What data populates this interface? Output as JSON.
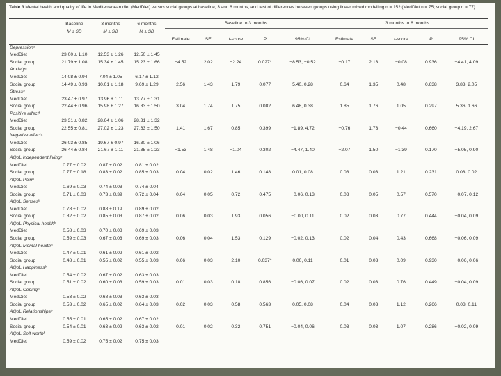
{
  "caption": {
    "label": "Table 3",
    "text": "Mental health and quality of life in Mediterranean diet (MedDiet) versus social groups at baseline, 3 and 6 months, and test of differences between groups using linear mixed modelling n = 152 (MedDiet n = 75; social group n = 77)"
  },
  "header": {
    "baseline": "Baseline",
    "m3": "3 months",
    "m6": "6 months",
    "msd": "M ± SD",
    "group_b3": "Baseline to 3 months",
    "group_36": "3 months to 6 months",
    "cols": [
      "Estimate",
      "SE",
      "t-score",
      "P",
      "95% CI",
      "Estimate",
      "SE",
      "t-score",
      "P",
      "95% CI"
    ]
  },
  "rows": [
    {
      "type": "section",
      "label": "Depressionᵃ"
    },
    {
      "type": "data",
      "label": "MedDiet",
      "c": [
        "23.00 ± 1.10",
        "12.53 ± 1.26",
        "12.50 ± 1.45",
        "",
        "",
        "",
        "",
        "",
        "",
        "",
        "",
        "",
        ""
      ]
    },
    {
      "type": "data",
      "label": "Social group",
      "c": [
        "21.79 ± 1.08",
        "15.34 ± 1.45",
        "15.23 ± 1.66",
        "−4.52",
        "2.02",
        "−2.24",
        "0.027*",
        "−8.53, −0.52",
        "−0.17",
        "2.13",
        "−0.08",
        "0.936",
        "−4.41, 4.09"
      ]
    },
    {
      "type": "section",
      "label": "Anxietyᵃ"
    },
    {
      "type": "data",
      "label": "MedDiet",
      "c": [
        "14.08 ± 0.94",
        "7.04 ± 1.05",
        "6.17 ± 1.12",
        "",
        "",
        "",
        "",
        "",
        "",
        "",
        "",
        "",
        ""
      ]
    },
    {
      "type": "data",
      "label": "Social group",
      "c": [
        "14.49 ± 0.93",
        "10.01 ± 1.18",
        "9.69 ± 1.29",
        "2.56",
        "1.43",
        "1.79",
        "0.077",
        "5.40, 0.28",
        "0.64",
        "1.35",
        "0.48",
        "0.638",
        "3.83, 2.05"
      ]
    },
    {
      "type": "section",
      "label": "Stressᵃ"
    },
    {
      "type": "data",
      "label": "MedDiet",
      "c": [
        "23.47 ± 0.97",
        "13.96 ± 1.11",
        "13.77 ± 1.31",
        "",
        "",
        "",
        "",
        "",
        "",
        "",
        "",
        "",
        ""
      ]
    },
    {
      "type": "data",
      "label": "Social group",
      "c": [
        "22.44 ± 0.96",
        "15.98 ± 1.27",
        "16.33 ± 1.50",
        "3.04",
        "1.74",
        "1.75",
        "0.082",
        "6.48, 0.38",
        "1.85",
        "1.76",
        "1.05",
        "0.297",
        "5.36, 1.66"
      ]
    },
    {
      "type": "section",
      "label": "Positive affectᵇ"
    },
    {
      "type": "data",
      "label": "MedDiet",
      "c": [
        "23.31 ± 0.82",
        "28.64 ± 1.06",
        "28.31 ± 1.32",
        "",
        "",
        "",
        "",
        "",
        "",
        "",
        "",
        "",
        ""
      ]
    },
    {
      "type": "data",
      "label": "Social group",
      "c": [
        "22.55 ± 0.81",
        "27.02 ± 1.23",
        "27.63 ± 1.50",
        "1.41",
        "1.67",
        "0.85",
        "0.399",
        "−1.89, 4.72",
        "−0.76",
        "1.73",
        "−0.44",
        "0.660",
        "−4.19, 2.67"
      ]
    },
    {
      "type": "section",
      "label": "Negative affectᵃ"
    },
    {
      "type": "data",
      "label": "MedDiet",
      "c": [
        "26.03 ± 0.85",
        "19.67 ± 0.97",
        "16.30 ± 1.06",
        "",
        "",
        "",
        "",
        "",
        "",
        "",
        "",
        "",
        ""
      ]
    },
    {
      "type": "data",
      "label": "Social group",
      "c": [
        "26.44 ± 0.84",
        "21.67 ± 1.11",
        "21.35 ± 1.23",
        "−1.53",
        "1.48",
        "−1.04",
        "0.302",
        "−4.47, 1.40",
        "−2.07",
        "1.50",
        "−1.39",
        "0.170",
        "−5.05, 0.90"
      ]
    },
    {
      "type": "section",
      "label": "AQoL independent livingᵇ"
    },
    {
      "type": "data",
      "label": "MedDiet",
      "c": [
        "0.77 ± 0.02",
        "0.87 ± 0.02",
        "0.81 ± 0.02",
        "",
        "",
        "",
        "",
        "",
        "",
        "",
        "",
        "",
        ""
      ]
    },
    {
      "type": "data",
      "label": "Social group",
      "c": [
        "0.77 ± 0.18",
        "0.83 ± 0.02",
        "0.85 ± 0.03",
        "0.04",
        "0.02",
        "1.46",
        "0.148",
        "0.01, 0.08",
        "0.03",
        "0.03",
        "1.21",
        "0.231",
        "0.03, 0.02"
      ]
    },
    {
      "type": "section",
      "label": "AQoL Painᵇ"
    },
    {
      "type": "data",
      "label": "MedDiet",
      "c": [
        "0.69 ± 0.03",
        "0.74 ± 0.03",
        "0.74 ± 0.04",
        "",
        "",
        "",
        "",
        "",
        "",
        "",
        "",
        "",
        ""
      ]
    },
    {
      "type": "data",
      "label": "Social group",
      "c": [
        "0.71 ± 0.03",
        "0.73 ± 0.39",
        "0.72 ± 0.04",
        "0.04",
        "0.05",
        "0.72",
        "0.475",
        "−0.06, 0.13",
        "0.03",
        "0.05",
        "0.57",
        "0.570",
        "−0.07, 0.12"
      ]
    },
    {
      "type": "section",
      "label": "AQoL Sensesᵇ"
    },
    {
      "type": "data",
      "label": "MedDiet",
      "c": [
        "0.78 ± 0.02",
        "0.88 ± 0.19",
        "0.89 ± 0.02",
        "",
        "",
        "",
        "",
        "",
        "",
        "",
        "",
        "",
        ""
      ]
    },
    {
      "type": "data",
      "label": "Social group",
      "c": [
        "0.82 ± 0.02",
        "0.85 ± 0.03",
        "0.87 ± 0.02",
        "0.06",
        "0.03",
        "1.93",
        "0.056",
        "−0.00, 0.11",
        "0.02",
        "0.03",
        "0.77",
        "0.444",
        "−0.04, 0.09"
      ]
    },
    {
      "type": "section",
      "label": "AQoL Physical healthᵇ"
    },
    {
      "type": "data",
      "label": "MedDiet",
      "c": [
        "0.58 ± 0.03",
        "0.70 ± 0.03",
        "0.69 ± 0.03",
        "",
        "",
        "",
        "",
        "",
        "",
        "",
        "",
        "",
        ""
      ]
    },
    {
      "type": "data",
      "label": "Social group",
      "c": [
        "0.59 ± 0.03",
        "0.67 ± 0.03",
        "0.69 ± 0.03",
        "0.06",
        "0.04",
        "1.53",
        "0.129",
        "−0.02, 0.13",
        "0.02",
        "0.04",
        "0.43",
        "0.668",
        "−0.06, 0.09"
      ]
    },
    {
      "type": "section",
      "label": "AQoL Mental healthᵇ"
    },
    {
      "type": "data",
      "label": "MedDiet",
      "c": [
        "0.47 ± 0.01",
        "0.61 ± 0.02",
        "0.61 ± 0.02",
        "",
        "",
        "",
        "",
        "",
        "",
        "",
        "",
        "",
        ""
      ]
    },
    {
      "type": "data",
      "label": "Social group",
      "c": [
        "0.48 ± 0.01",
        "0.55 ± 0.02",
        "0.55 ± 0.03",
        "0.06",
        "0.03",
        "2.10",
        "0.037*",
        "0.00, 0.11",
        "0.01",
        "0.03",
        "0.09",
        "0.930",
        "−0.06, 0.06"
      ]
    },
    {
      "type": "section",
      "label": "AQoL Happinessᵇ"
    },
    {
      "type": "data",
      "label": "MedDiet",
      "c": [
        "0.54 ± 0.02",
        "0.67 ± 0.02",
        "0.63 ± 0.03",
        "",
        "",
        "",
        "",
        "",
        "",
        "",
        "",
        "",
        ""
      ]
    },
    {
      "type": "data",
      "label": "Social group",
      "c": [
        "0.51 ± 0.02",
        "0.60 ± 0.03",
        "0.59 ± 0.03",
        "0.01",
        "0.03",
        "0.18",
        "0.856",
        "−0.06, 0.07",
        "0.02",
        "0.03",
        "0.76",
        "0.449",
        "−0.04, 0.09"
      ]
    },
    {
      "type": "section",
      "label": "AQoL Copingᵇ"
    },
    {
      "type": "data",
      "label": "MedDiet",
      "c": [
        "0.53 ± 0.02",
        "0.68 ± 0.03",
        "0.63 ± 0.03",
        "",
        "",
        "",
        "",
        "",
        "",
        "",
        "",
        "",
        ""
      ]
    },
    {
      "type": "data",
      "label": "Social group",
      "c": [
        "0.53 ± 0.02",
        "0.65 ± 0.02",
        "0.64 ± 0.03",
        "0.02",
        "0.03",
        "0.58",
        "0.563",
        "0.05, 0.08",
        "0.04",
        "0.03",
        "1.12",
        "0.266",
        "0.03, 0.11"
      ]
    },
    {
      "type": "section",
      "label": "AQoL Relationshipsᵇ"
    },
    {
      "type": "data",
      "label": "MedDiet",
      "c": [
        "0.55 ± 0.01",
        "0.65 ± 0.02",
        "0.67 ± 0.02",
        "",
        "",
        "",
        "",
        "",
        "",
        "",
        "",
        "",
        ""
      ]
    },
    {
      "type": "data",
      "label": "Social group",
      "c": [
        "0.54 ± 0.01",
        "0.63 ± 0.02",
        "0.63 ± 0.02",
        "0.01",
        "0.02",
        "0.32",
        "0.751",
        "−0.04, 0.06",
        "0.03",
        "0.03",
        "1.07",
        "0.286",
        "−0.02, 0.09"
      ]
    },
    {
      "type": "section",
      "label": "AQoL Self worthᵇ"
    },
    {
      "type": "data",
      "label": "MedDiet",
      "c": [
        "0.59 ± 0.02",
        "0.75 ± 0.02",
        "0.75 ± 0.03",
        "",
        "",
        "",
        "",
        "",
        "",
        "",
        "",
        "",
        ""
      ]
    }
  ]
}
